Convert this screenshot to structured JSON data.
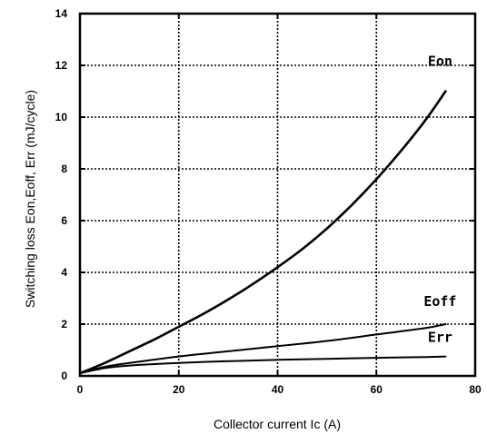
{
  "chart_data": {
    "type": "line",
    "title": "",
    "xlabel": "Collector current  Ic (A)",
    "ylabel": "Switching loss Eon,Eoff, Err  (mJ/cycle)",
    "xlim": [
      0,
      80
    ],
    "ylim": [
      0,
      14
    ],
    "xticks": [
      0,
      20,
      40,
      60,
      80
    ],
    "yticks": [
      0,
      2,
      4,
      6,
      8,
      10,
      12,
      14
    ],
    "grid": true,
    "legend": "inline labels at line ends",
    "series": [
      {
        "name": "Eon",
        "x": [
          0,
          5,
          10,
          15,
          20,
          25,
          30,
          35,
          40,
          45,
          50,
          55,
          60,
          65,
          70,
          74
        ],
        "y": [
          0.1,
          0.5,
          0.95,
          1.4,
          1.9,
          2.4,
          2.95,
          3.55,
          4.2,
          4.9,
          5.7,
          6.6,
          7.6,
          8.7,
          9.9,
          11.0
        ]
      },
      {
        "name": "Eoff",
        "x": [
          0,
          5,
          10,
          20,
          30,
          40,
          50,
          60,
          70,
          74
        ],
        "y": [
          0.1,
          0.35,
          0.5,
          0.75,
          0.95,
          1.15,
          1.35,
          1.6,
          1.85,
          2.0
        ]
      },
      {
        "name": "Err",
        "x": [
          0,
          5,
          10,
          20,
          30,
          40,
          50,
          60,
          70,
          74
        ],
        "y": [
          0.1,
          0.3,
          0.4,
          0.5,
          0.57,
          0.62,
          0.66,
          0.7,
          0.73,
          0.75
        ]
      }
    ]
  }
}
